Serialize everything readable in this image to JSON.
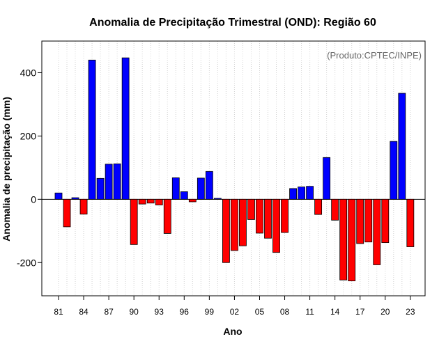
{
  "chart_data": {
    "type": "bar",
    "title": "Anomalia de Precipitação Trimestral (OND): Região 60",
    "xlabel": "Ano",
    "ylabel": "Anomalia de precipitação (mm)",
    "annotation": "(Produto:CPTEC/INPE)",
    "ylim": [
      -305,
      500
    ],
    "yticks": [
      -200,
      0,
      200,
      400
    ],
    "years": [
      1981,
      1982,
      1983,
      1984,
      1985,
      1986,
      1987,
      1988,
      1989,
      1990,
      1991,
      1992,
      1993,
      1994,
      1995,
      1996,
      1997,
      1998,
      1999,
      2000,
      2001,
      2002,
      2003,
      2004,
      2005,
      2006,
      2007,
      2008,
      2009,
      2010,
      2011,
      2012,
      2013,
      2014,
      2015,
      2016,
      2017,
      2018,
      2019,
      2020,
      2021,
      2022,
      2023
    ],
    "values": [
      20,
      -87,
      5,
      -47,
      440,
      66,
      111,
      112,
      447,
      -143,
      -15,
      -12,
      -18,
      -108,
      68,
      24,
      -8,
      67,
      88,
      3,
      -200,
      -162,
      -147,
      -64,
      -107,
      -123,
      -168,
      -105,
      34,
      39,
      41,
      -48,
      132,
      -66,
      -255,
      -258,
      -140,
      -135,
      -207,
      -137,
      183,
      335,
      -150
    ],
    "xtick_labels": [
      "81",
      "84",
      "87",
      "90",
      "93",
      "96",
      "99",
      "02",
      "05",
      "08",
      "11",
      "14",
      "17",
      "20",
      "23"
    ],
    "xtick_years": [
      1981,
      1984,
      1987,
      1990,
      1993,
      1996,
      1999,
      2002,
      2005,
      2008,
      2011,
      2014,
      2017,
      2020,
      2023
    ],
    "colors": {
      "positive": "#0000ff",
      "negative": "#ff0000",
      "bar_stroke": "#000000",
      "grid": "#d3d3d3",
      "frame": "#000000"
    }
  }
}
